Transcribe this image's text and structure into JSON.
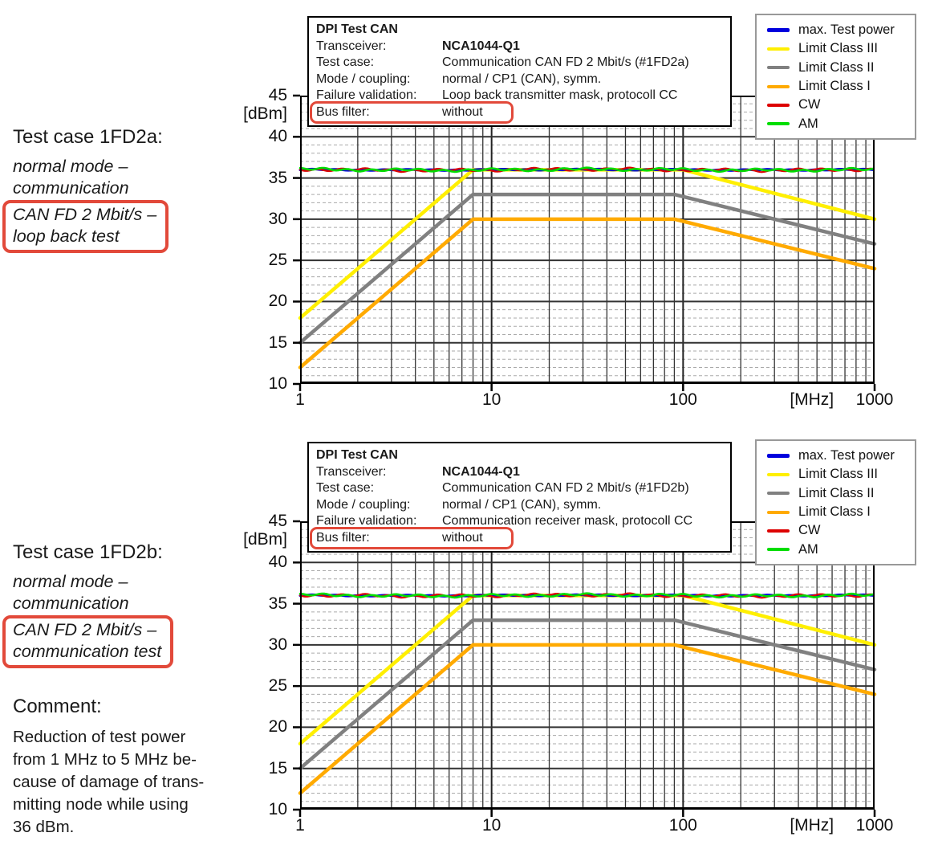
{
  "colors": {
    "annotation_red": "#e2493a",
    "grid_major": "#333333",
    "grid_minor": "#aaaaaa",
    "frame": "#000000"
  },
  "annotations": [
    {
      "title": "Test case 1FD2a:",
      "lines": [
        "normal mode –",
        "communication"
      ],
      "boxed_lines": [
        "CAN FD 2 Mbit/s –",
        "loop back test"
      ]
    },
    {
      "title": "Test case 1FD2b:",
      "lines": [
        "normal mode –",
        "communication"
      ],
      "boxed_lines": [
        "CAN FD 2 Mbit/s –",
        "communication test"
      ]
    }
  ],
  "comment": {
    "title": "Comment:",
    "lines": [
      "Reduction of test power",
      "from 1 MHz to 5 MHz be-",
      "cause of damage of trans-",
      "mitting node while using",
      "36 dBm."
    ]
  },
  "chart_data": [
    {
      "type": "line",
      "info": {
        "title": "DPI Test CAN",
        "rows": [
          {
            "label": "Transceiver:",
            "value": "NCA1044-Q1",
            "bold": true
          },
          {
            "label": "Test case:",
            "value": "Communication CAN FD 2 Mbit/s (#1FD2a)"
          },
          {
            "label": "Mode / coupling:",
            "value": "normal / CP1 (CAN), symm."
          },
          {
            "label": "Failure validation:",
            "value": "Loop back transmitter mask, protocoll CC"
          },
          {
            "label": "Bus filter:",
            "value": "without",
            "red_boxed": true
          }
        ]
      },
      "x_axis": {
        "scale": "log",
        "min": 1,
        "max": 1000,
        "ticks": [
          1,
          10,
          100,
          1000
        ],
        "unit_label": "[MHz]"
      },
      "y_axis": {
        "min": 10,
        "max": 45,
        "major_step": 5,
        "minor_step": 1,
        "unit_label": "[dBm]"
      },
      "grid": true,
      "legend_position": "top-right",
      "series": [
        {
          "name": "Limit Class III",
          "color": "#ffef00",
          "width": 4.5,
          "points": [
            [
              1,
              18
            ],
            [
              8,
              36
            ],
            [
              100,
              36
            ],
            [
              1000,
              30
            ]
          ]
        },
        {
          "name": "Limit Class II",
          "color": "#808080",
          "width": 4.5,
          "points": [
            [
              1,
              15
            ],
            [
              8,
              33
            ],
            [
              90,
              33
            ],
            [
              1000,
              27
            ]
          ]
        },
        {
          "name": "Limit Class I",
          "color": "#ffaa00",
          "width": 4.5,
          "points": [
            [
              1,
              12
            ],
            [
              8,
              30
            ],
            [
              90,
              30
            ],
            [
              1000,
              24
            ]
          ]
        },
        {
          "name": "max. Test power",
          "color": "#0000dd",
          "width": 3,
          "points": [
            [
              1,
              36
            ],
            [
              1000,
              36
            ]
          ],
          "noise": 0.05
        },
        {
          "name": "CW",
          "color": "#dd0000",
          "width": 2.2,
          "points": [
            [
              1,
              36
            ],
            [
              1000,
              36
            ]
          ],
          "noise": 0.13
        },
        {
          "name": "AM",
          "color": "#00dd00",
          "width": 2.6,
          "points": [
            [
              1,
              36
            ],
            [
              1000,
              36
            ]
          ],
          "noise": 0.12
        }
      ],
      "legend": [
        {
          "name": "max. Test power",
          "color": "#0000dd"
        },
        {
          "name": "Limit Class III",
          "color": "#ffef00"
        },
        {
          "name": "Limit Class II",
          "color": "#808080"
        },
        {
          "name": "Limit Class I",
          "color": "#ffaa00"
        },
        {
          "name": "CW",
          "color": "#dd0000"
        },
        {
          "name": "AM",
          "color": "#00dd00"
        }
      ]
    },
    {
      "type": "line",
      "info": {
        "title": "DPI Test CAN",
        "rows": [
          {
            "label": "Transceiver:",
            "value": "NCA1044-Q1",
            "bold": true
          },
          {
            "label": "Test case:",
            "value": "Communication CAN FD 2 Mbit/s (#1FD2b)"
          },
          {
            "label": "Mode / coupling:",
            "value": "normal / CP1 (CAN), symm."
          },
          {
            "label": "Failure validation:",
            "value": "Communication receiver mask, protocoll CC"
          },
          {
            "label": "Bus filter:",
            "value": "without",
            "red_boxed": true
          }
        ]
      },
      "x_axis": {
        "scale": "log",
        "min": 1,
        "max": 1000,
        "ticks": [
          1,
          10,
          100,
          1000
        ],
        "unit_label": "[MHz]"
      },
      "y_axis": {
        "min": 10,
        "max": 45,
        "major_step": 5,
        "minor_step": 1,
        "unit_label": "[dBm]"
      },
      "grid": true,
      "legend_position": "top-right",
      "series": [
        {
          "name": "Limit Class III",
          "color": "#ffef00",
          "width": 4.5,
          "points": [
            [
              1,
              18
            ],
            [
              8,
              36
            ],
            [
              100,
              36
            ],
            [
              1000,
              30
            ]
          ]
        },
        {
          "name": "Limit Class II",
          "color": "#808080",
          "width": 4.5,
          "points": [
            [
              1,
              15
            ],
            [
              8,
              33
            ],
            [
              90,
              33
            ],
            [
              1000,
              27
            ]
          ]
        },
        {
          "name": "Limit Class I",
          "color": "#ffaa00",
          "width": 4.5,
          "points": [
            [
              1,
              12
            ],
            [
              8,
              30
            ],
            [
              90,
              30
            ],
            [
              1000,
              24
            ]
          ]
        },
        {
          "name": "max. Test power",
          "color": "#0000dd",
          "width": 3,
          "points": [
            [
              1,
              36
            ],
            [
              1000,
              36
            ]
          ],
          "noise": 0.05
        },
        {
          "name": "CW",
          "color": "#dd0000",
          "width": 2.2,
          "points": [
            [
              1,
              36
            ],
            [
              1000,
              36
            ]
          ],
          "noise": 0.13
        },
        {
          "name": "AM",
          "color": "#00dd00",
          "width": 2.6,
          "points": [
            [
              1,
              36
            ],
            [
              1000,
              36
            ]
          ],
          "noise": 0.12
        }
      ],
      "legend": [
        {
          "name": "max. Test power",
          "color": "#0000dd"
        },
        {
          "name": "Limit Class III",
          "color": "#ffef00"
        },
        {
          "name": "Limit Class II",
          "color": "#808080"
        },
        {
          "name": "Limit Class I",
          "color": "#ffaa00"
        },
        {
          "name": "CW",
          "color": "#dd0000"
        },
        {
          "name": "AM",
          "color": "#00dd00"
        }
      ]
    }
  ]
}
